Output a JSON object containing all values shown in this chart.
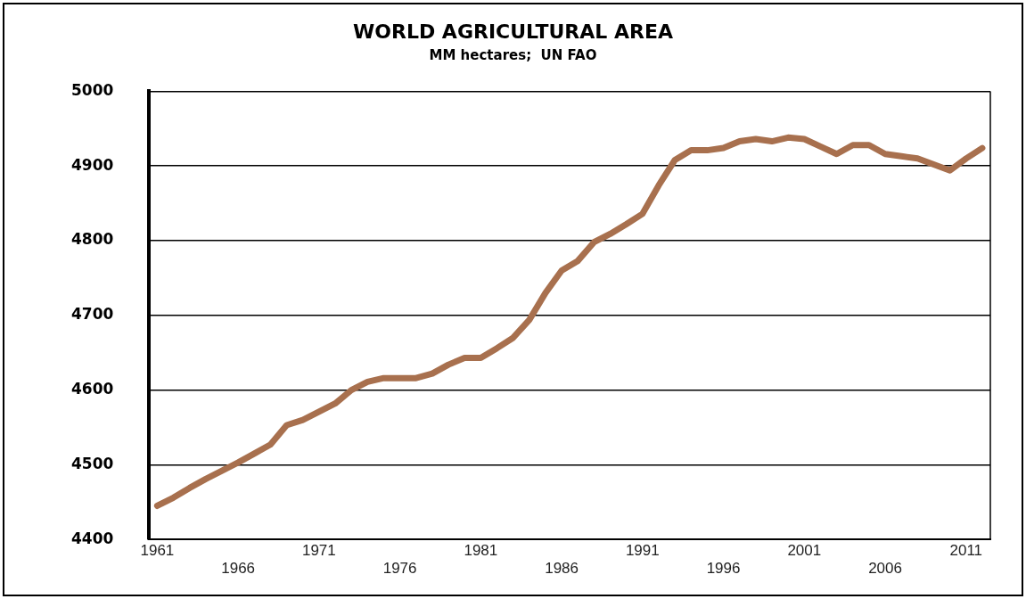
{
  "chart_data": {
    "type": "line",
    "title": "WORLD AGRICULTURAL AREA",
    "subtitle": "MM hectares;  UN FAO",
    "categories": [
      "1961",
      null,
      null,
      null,
      null,
      "1966",
      null,
      null,
      null,
      null,
      "1971",
      null,
      null,
      null,
      null,
      "1976",
      null,
      null,
      null,
      null,
      "1981",
      null,
      null,
      null,
      null,
      "1986",
      null,
      null,
      null,
      null,
      "1991",
      null,
      null,
      null,
      null,
      "1996",
      null,
      null,
      null,
      null,
      "2001",
      null,
      null,
      null,
      null,
      "2006",
      null,
      null,
      null,
      null,
      "2011",
      null
    ],
    "series": [
      {
        "color": "#a8704e",
        "values": [
          4445,
          4456,
          4469,
          4481,
          4492,
          4503,
          4515,
          4527,
          4553,
          4560,
          4571,
          4582,
          4600,
          4611,
          4616,
          4616,
          4616,
          4622,
          4634,
          4643,
          4643,
          4656,
          4670,
          4694,
          4730,
          4760,
          4773,
          4798,
          4809,
          4822,
          4836,
          4874,
          4908,
          4921,
          4921,
          4924,
          4933,
          4936,
          4933,
          4938,
          4936,
          4926,
          4916,
          4928,
          4928,
          4916,
          4913,
          4910,
          4902,
          4894,
          4910,
          4924
        ]
      }
    ],
    "ylim": [
      4400,
      5000
    ],
    "yticks": [
      4400,
      4500,
      4600,
      4700,
      4800,
      4900,
      5000
    ],
    "grid": "y",
    "legend": false,
    "marker": "none",
    "line_style": "solid"
  }
}
